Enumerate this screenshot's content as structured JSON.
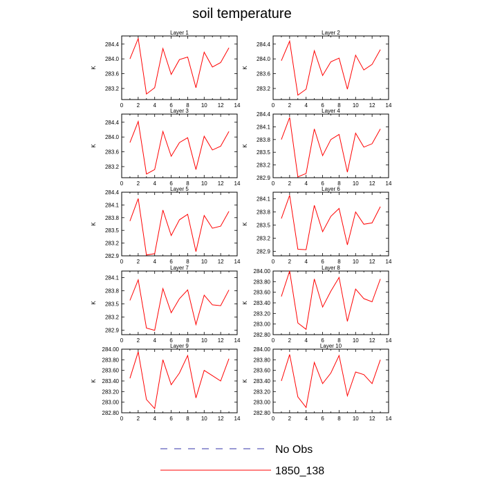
{
  "title": "soil temperature",
  "legend": [
    {
      "label": "No Obs",
      "style": "dashed",
      "color": "#3333aa"
    },
    {
      "label": "1850_138",
      "style": "solid",
      "color": "#ff0000"
    }
  ],
  "colors": {
    "series": "#ff0000",
    "axes": "#000000"
  },
  "chart_data": [
    {
      "type": "line",
      "title": "Layer 1",
      "ylabel": "K",
      "xlim": [
        0,
        14
      ],
      "ylim": [
        282.9,
        284.62
      ],
      "xticks": [
        0,
        2,
        4,
        6,
        8,
        10,
        12,
        14
      ],
      "yticks": [
        283.2,
        283.6,
        284.0,
        284.4
      ],
      "ytick_labels": [
        "283.2",
        "283.6",
        "284.0",
        "284.4"
      ],
      "x": [
        1,
        2,
        3,
        4,
        5,
        6,
        7,
        8,
        9,
        10,
        11,
        12,
        13
      ],
      "series": [
        {
          "values": [
            284.0,
            284.55,
            283.05,
            283.22,
            284.28,
            283.58,
            283.98,
            284.05,
            283.22,
            284.18,
            283.78,
            283.9,
            284.3
          ]
        }
      ]
    },
    {
      "type": "line",
      "title": "Layer 2",
      "ylabel": "K",
      "xlim": [
        0,
        14
      ],
      "ylim": [
        282.9,
        284.62
      ],
      "xticks": [
        0,
        2,
        4,
        6,
        8,
        10,
        12,
        14
      ],
      "yticks": [
        283.2,
        283.6,
        284.0,
        284.4
      ],
      "ytick_labels": [
        "283.2",
        "283.6",
        "284.0",
        "284.4"
      ],
      "x": [
        1,
        2,
        3,
        4,
        5,
        6,
        7,
        8,
        9,
        10,
        11,
        12,
        13
      ],
      "series": [
        {
          "values": [
            283.95,
            284.48,
            283.02,
            283.18,
            284.22,
            283.55,
            283.92,
            284.02,
            283.18,
            284.1,
            283.7,
            283.85,
            284.25
          ]
        }
      ]
    },
    {
      "type": "line",
      "title": "Layer 3",
      "ylabel": "K",
      "xlim": [
        0,
        14
      ],
      "ylim": [
        282.9,
        284.62
      ],
      "xticks": [
        0,
        2,
        4,
        6,
        8,
        10,
        12,
        14
      ],
      "yticks": [
        283.2,
        283.6,
        284.0,
        284.4
      ],
      "ytick_labels": [
        "283.2",
        "283.6",
        "284.0",
        "284.4"
      ],
      "x": [
        1,
        2,
        3,
        4,
        5,
        6,
        7,
        8,
        9,
        10,
        11,
        12,
        13
      ],
      "series": [
        {
          "values": [
            283.85,
            284.42,
            283.0,
            283.12,
            284.15,
            283.48,
            283.85,
            283.98,
            283.12,
            284.02,
            283.65,
            283.75,
            284.15
          ]
        }
      ]
    },
    {
      "type": "line",
      "title": "Layer 4",
      "ylabel": "K",
      "xlim": [
        0,
        14
      ],
      "ylim": [
        282.9,
        284.4
      ],
      "xticks": [
        0,
        2,
        4,
        6,
        8,
        10,
        12,
        14
      ],
      "yticks": [
        282.9,
        283.2,
        283.5,
        283.8,
        284.1,
        284.4
      ],
      "ytick_labels": [
        "282.9",
        "283.2",
        "283.5",
        "283.8",
        "284.1",
        "284.4"
      ],
      "x": [
        1,
        2,
        3,
        4,
        5,
        6,
        7,
        8,
        9,
        10,
        11,
        12,
        13
      ],
      "series": [
        {
          "values": [
            283.8,
            284.32,
            282.92,
            283.0,
            284.05,
            283.42,
            283.8,
            283.92,
            283.03,
            283.95,
            283.62,
            283.7,
            284.05
          ]
        }
      ]
    },
    {
      "type": "line",
      "title": "Layer 5",
      "ylabel": "K",
      "xlim": [
        0,
        14
      ],
      "ylim": [
        282.9,
        284.4
      ],
      "xticks": [
        0,
        2,
        4,
        6,
        8,
        10,
        12,
        14
      ],
      "yticks": [
        282.9,
        283.2,
        283.5,
        283.8,
        284.1,
        284.4
      ],
      "ytick_labels": [
        "282.9",
        "283.2",
        "283.5",
        "283.8",
        "284.1",
        "284.4"
      ],
      "x": [
        1,
        2,
        3,
        4,
        5,
        6,
        7,
        8,
        9,
        10,
        11,
        12,
        13
      ],
      "series": [
        {
          "values": [
            283.72,
            284.25,
            282.92,
            282.95,
            283.98,
            283.38,
            283.75,
            283.88,
            283.0,
            283.85,
            283.55,
            283.6,
            283.95
          ]
        }
      ]
    },
    {
      "type": "line",
      "title": "Layer 6",
      "ylabel": "K",
      "xlim": [
        0,
        14
      ],
      "ylim": [
        282.8,
        284.25
      ],
      "xticks": [
        0,
        2,
        4,
        6,
        8,
        10,
        12,
        14
      ],
      "yticks": [
        282.9,
        283.2,
        283.5,
        283.8,
        284.1
      ],
      "ytick_labels": [
        "282.9",
        "283.2",
        "283.5",
        "283.8",
        "284.1"
      ],
      "x": [
        1,
        2,
        3,
        4,
        5,
        6,
        7,
        8,
        9,
        10,
        11,
        12,
        13
      ],
      "series": [
        {
          "values": [
            283.65,
            284.18,
            282.95,
            282.94,
            283.95,
            283.35,
            283.7,
            283.88,
            283.05,
            283.8,
            283.52,
            283.55,
            283.92
          ]
        }
      ]
    },
    {
      "type": "line",
      "title": "Layer 7",
      "ylabel": "K",
      "xlim": [
        0,
        14
      ],
      "ylim": [
        282.8,
        284.25
      ],
      "xticks": [
        0,
        2,
        4,
        6,
        8,
        10,
        12,
        14
      ],
      "yticks": [
        282.9,
        283.2,
        283.5,
        283.8,
        284.1
      ],
      "ytick_labels": [
        "282.9",
        "283.2",
        "283.5",
        "283.8",
        "284.1"
      ],
      "x": [
        1,
        2,
        3,
        4,
        5,
        6,
        7,
        8,
        9,
        10,
        11,
        12,
        13
      ],
      "series": [
        {
          "values": [
            283.58,
            284.05,
            282.95,
            282.9,
            283.85,
            283.3,
            283.62,
            283.82,
            283.03,
            283.7,
            283.48,
            283.46,
            283.82
          ]
        }
      ]
    },
    {
      "type": "line",
      "title": "Layer 8",
      "ylabel": "K",
      "xlim": [
        0,
        14
      ],
      "ylim": [
        282.8,
        284.0
      ],
      "xticks": [
        0,
        2,
        4,
        6,
        8,
        10,
        12,
        14
      ],
      "yticks": [
        282.8,
        283.0,
        283.2,
        283.4,
        283.6,
        283.8,
        284.0
      ],
      "ytick_labels": [
        "282.80",
        "283.00",
        "283.20",
        "283.40",
        "283.60",
        "283.80",
        "284.00"
      ],
      "x": [
        1,
        2,
        3,
        4,
        5,
        6,
        7,
        8,
        9,
        10,
        11,
        12,
        13
      ],
      "series": [
        {
          "values": [
            283.52,
            284.0,
            283.02,
            282.9,
            283.85,
            283.32,
            283.62,
            283.88,
            283.05,
            283.66,
            283.48,
            283.42,
            283.85
          ]
        }
      ]
    },
    {
      "type": "line",
      "title": "Layer 9",
      "ylabel": "K",
      "xlim": [
        0,
        14
      ],
      "ylim": [
        282.8,
        284.0
      ],
      "xticks": [
        0,
        2,
        4,
        6,
        8,
        10,
        12,
        14
      ],
      "yticks": [
        282.8,
        283.0,
        283.2,
        283.4,
        283.6,
        283.8,
        284.0
      ],
      "ytick_labels": [
        "282.80",
        "283.00",
        "283.20",
        "283.40",
        "283.60",
        "283.80",
        "284.00"
      ],
      "x": [
        1,
        2,
        3,
        4,
        5,
        6,
        7,
        8,
        9,
        10,
        11,
        12,
        13
      ],
      "series": [
        {
          "values": [
            283.45,
            283.95,
            283.05,
            282.88,
            283.8,
            283.33,
            283.55,
            283.88,
            283.08,
            283.6,
            283.5,
            283.4,
            283.82
          ]
        }
      ]
    },
    {
      "type": "line",
      "title": "Layer 10",
      "ylabel": "K",
      "xlim": [
        0,
        14
      ],
      "ylim": [
        282.8,
        284.0
      ],
      "xticks": [
        0,
        2,
        4,
        6,
        8,
        10,
        12,
        14
      ],
      "yticks": [
        282.8,
        283.0,
        283.2,
        283.4,
        283.6,
        283.8,
        284.0
      ],
      "ytick_labels": [
        "282.80",
        "283.00",
        "283.20",
        "283.40",
        "283.60",
        "283.80",
        "284.00"
      ],
      "x": [
        1,
        2,
        3,
        4,
        5,
        6,
        7,
        8,
        9,
        10,
        11,
        12,
        13
      ],
      "series": [
        {
          "values": [
            283.4,
            283.9,
            283.1,
            282.9,
            283.75,
            283.35,
            283.55,
            283.88,
            283.12,
            283.57,
            283.52,
            283.35,
            283.8
          ]
        }
      ]
    }
  ]
}
